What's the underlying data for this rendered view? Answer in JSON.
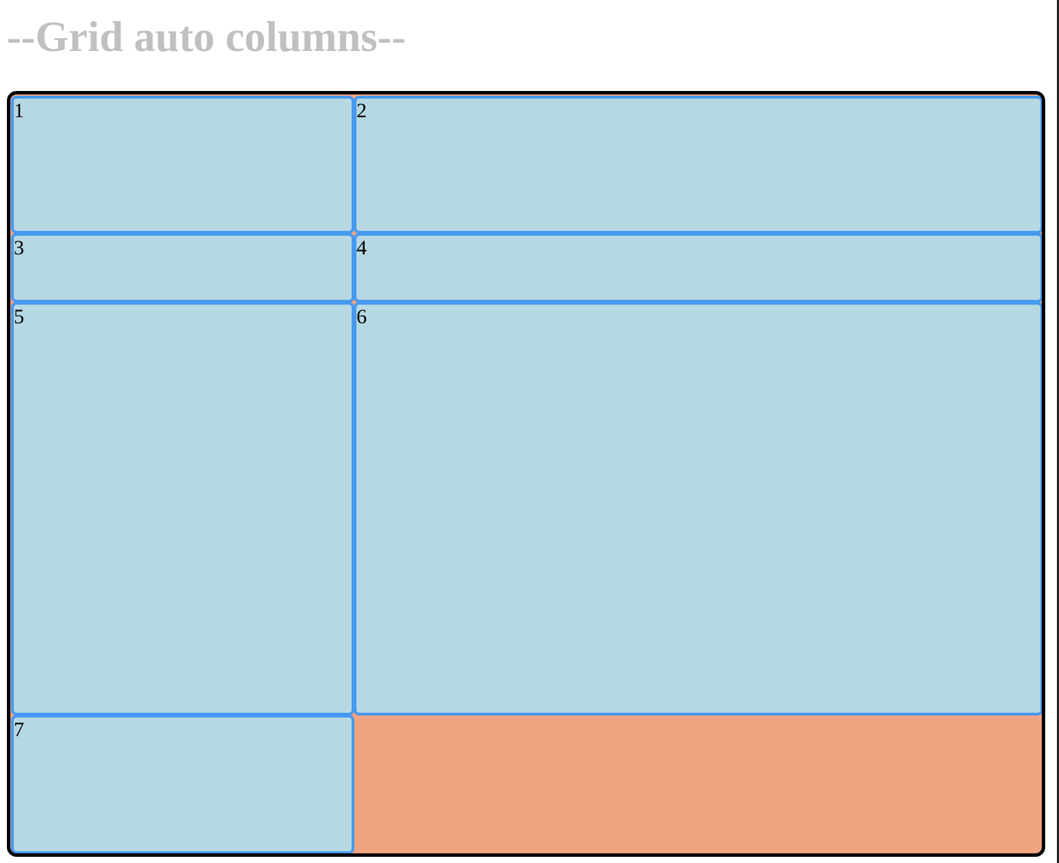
{
  "page": {
    "title": "--Grid auto columns--"
  },
  "grid": {
    "items": [
      {
        "label": "1"
      },
      {
        "label": "2"
      },
      {
        "label": "3"
      },
      {
        "label": "4"
      },
      {
        "label": "5"
      },
      {
        "label": "6"
      },
      {
        "label": "7"
      }
    ]
  },
  "colors": {
    "title_text": "#c0c0c0",
    "container_background": "#f0a481",
    "container_border": "#000000",
    "item_background": "#b6d8e3",
    "item_border": "#4699f0"
  }
}
